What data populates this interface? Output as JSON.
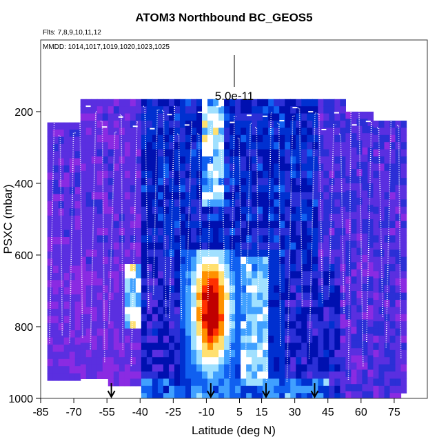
{
  "chart_data": {
    "type": "heatmap",
    "title": "ATOM3 Northbound BC_GEOS5",
    "flights_note": "Flts: 7,8,9,10,11,12",
    "dates_note": "MMDD: 1014,1017,1019,1020,1023,1025",
    "scale_label": "5.0e-11",
    "xlabel": "Latitude (deg N)",
    "ylabel": "PSXC (mbar)",
    "xlim": [
      -85,
      90
    ],
    "ylim": [
      1000,
      0
    ],
    "x_ticks": [
      -85,
      -70,
      -55,
      -40,
      -25,
      -10,
      5,
      15,
      30,
      45,
      60,
      75
    ],
    "y_ticks": [
      200,
      400,
      600,
      800,
      1000
    ],
    "arrow_latitudes": [
      -53,
      -8,
      17,
      39
    ],
    "hotspot": {
      "lat_range": [
        -16,
        -1
      ],
      "pressure_range": [
        580,
        820
      ],
      "peak_lat": -9,
      "peak_pressure": 740
    },
    "colormap": [
      "#8a2be2",
      "#5a2fe0",
      "#2b2fd6",
      "#0010b0",
      "#0030d0",
      "#1060f0",
      "#40a0ff",
      "#a0e0ff",
      "#ffffff",
      "#ffe070",
      "#ff9000",
      "#ff3000",
      "#c00000"
    ]
  }
}
